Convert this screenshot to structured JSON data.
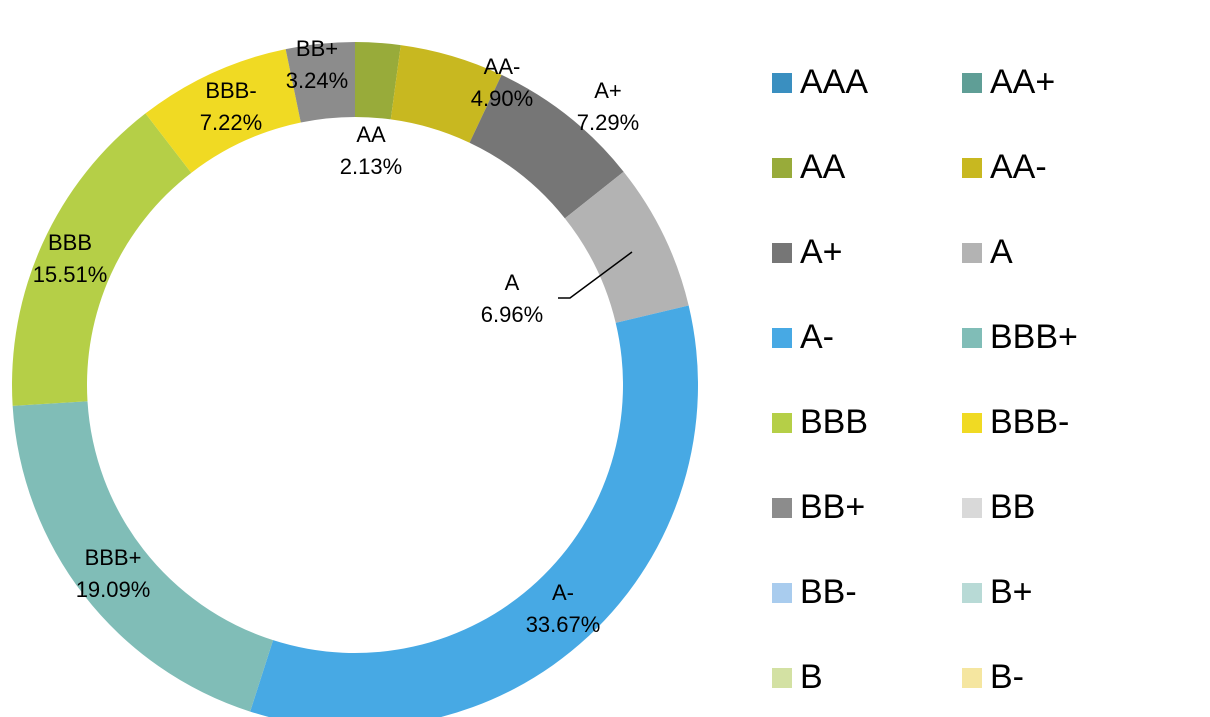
{
  "chart_data": {
    "type": "donut",
    "categories": [
      "AAA",
      "AA+",
      "AA",
      "AA-",
      "A+",
      "A",
      "A-",
      "BBB+",
      "BBB",
      "BBB-",
      "BB+",
      "BB",
      "BB-",
      "B+",
      "B",
      "B-"
    ],
    "values": [
      0,
      0,
      2.13,
      4.9,
      7.29,
      6.96,
      33.67,
      19.09,
      15.51,
      7.22,
      3.24,
      0,
      0,
      0,
      0,
      0
    ],
    "value_labels": [
      null,
      null,
      "2.13%",
      "4.90%",
      "7.29%",
      "6.96%",
      "33.67%",
      "19.09%",
      "15.51%",
      "7.22%",
      "3.24%",
      null,
      null,
      null,
      null,
      null
    ],
    "colors": [
      "#3a8fc0",
      "#5f9e96",
      "#98ab3a",
      "#c8b820",
      "#767676",
      "#b3b3b3",
      "#47a9e4",
      "#80bdb7",
      "#b5cf47",
      "#f0da23",
      "#8c8c8c",
      "#d9d9d9",
      "#a9ccee",
      "#b8dad6",
      "#d3e1a3",
      "#f5e6a0"
    ],
    "legend": "right"
  }
}
